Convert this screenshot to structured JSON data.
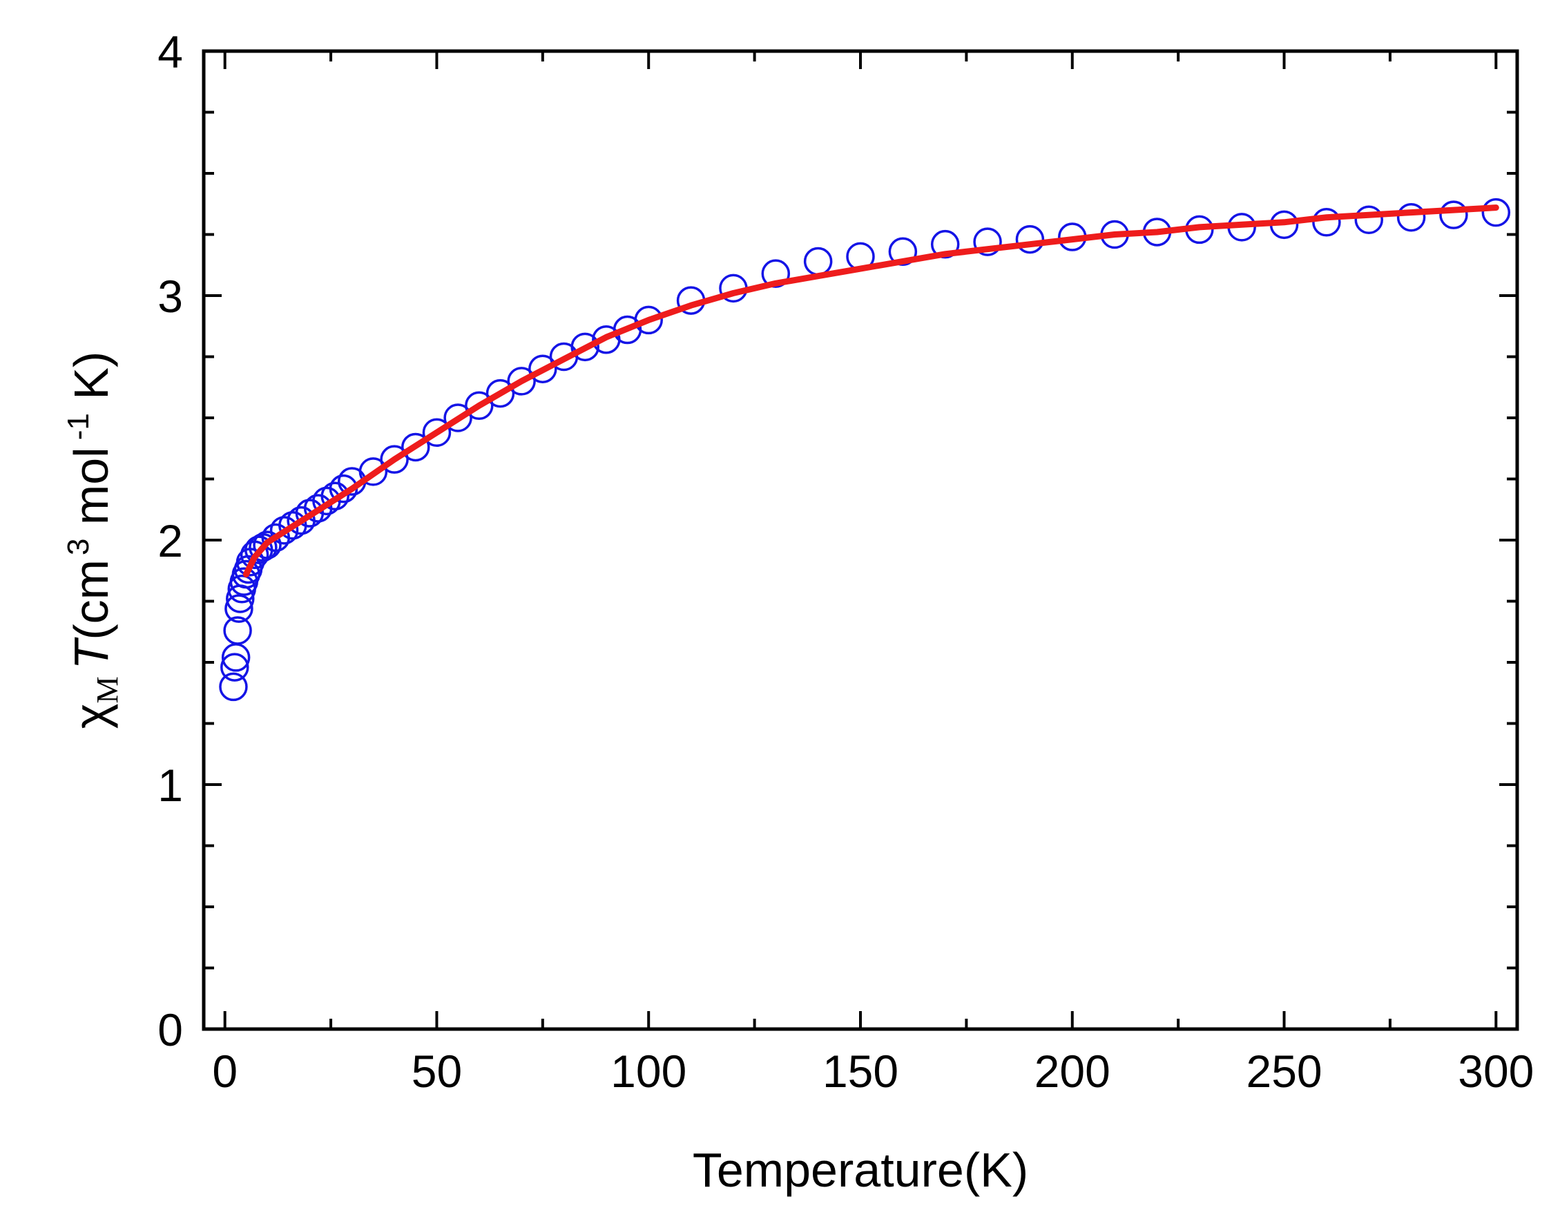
{
  "chart_data": {
    "type": "scatter",
    "title": "",
    "xlabel": "Temperature(K)",
    "ylabel": {
      "chi": "χ",
      "sub": "M",
      "T": "T",
      "open": "(cm",
      "sup3": "3",
      "mol": " mol",
      "sup_minus1": "-1",
      "close": " K)"
    },
    "xlim": [
      -5,
      305
    ],
    "ylim": [
      0,
      4
    ],
    "xticks": [
      0,
      50,
      100,
      150,
      200,
      250,
      300
    ],
    "xtick_labels": [
      "0",
      "50",
      "100",
      "150",
      "200",
      "250",
      "300"
    ],
    "yticks": [
      0,
      1,
      2,
      3,
      4
    ],
    "ytick_labels": [
      "0",
      "1",
      "2",
      "3",
      "4"
    ],
    "x_minor_step": 25,
    "y_minor_step": 0.25,
    "grid": false,
    "legend": "none",
    "series": [
      {
        "style": "open-circle",
        "color": "#1414e6",
        "points": [
          [
            2,
            1.4
          ],
          [
            2.3,
            1.48
          ],
          [
            2.6,
            1.52
          ],
          [
            3,
            1.63
          ],
          [
            3.3,
            1.72
          ],
          [
            3.6,
            1.76
          ],
          [
            4,
            1.8
          ],
          [
            4.5,
            1.83
          ],
          [
            5,
            1.86
          ],
          [
            5.5,
            1.88
          ],
          [
            6,
            1.91
          ],
          [
            7,
            1.94
          ],
          [
            8,
            1.96
          ],
          [
            9,
            1.97
          ],
          [
            10,
            1.98
          ],
          [
            12,
            2.01
          ],
          [
            14,
            2.04
          ],
          [
            16,
            2.06
          ],
          [
            18,
            2.08
          ],
          [
            20,
            2.11
          ],
          [
            22,
            2.13
          ],
          [
            24,
            2.16
          ],
          [
            26,
            2.18
          ],
          [
            28,
            2.21
          ],
          [
            30,
            2.24
          ],
          [
            35,
            2.28
          ],
          [
            40,
            2.33
          ],
          [
            45,
            2.38
          ],
          [
            50,
            2.44
          ],
          [
            55,
            2.5
          ],
          [
            60,
            2.55
          ],
          [
            65,
            2.6
          ],
          [
            70,
            2.65
          ],
          [
            75,
            2.7
          ],
          [
            80,
            2.75
          ],
          [
            85,
            2.79
          ],
          [
            90,
            2.82
          ],
          [
            95,
            2.86
          ],
          [
            100,
            2.9
          ],
          [
            110,
            2.98
          ],
          [
            120,
            3.03
          ],
          [
            130,
            3.09
          ],
          [
            140,
            3.14
          ],
          [
            150,
            3.16
          ],
          [
            160,
            3.18
          ],
          [
            170,
            3.21
          ],
          [
            180,
            3.22
          ],
          [
            190,
            3.23
          ],
          [
            200,
            3.24
          ],
          [
            210,
            3.25
          ],
          [
            220,
            3.26
          ],
          [
            230,
            3.27
          ],
          [
            240,
            3.28
          ],
          [
            250,
            3.29
          ],
          [
            260,
            3.3
          ],
          [
            270,
            3.31
          ],
          [
            280,
            3.32
          ],
          [
            290,
            3.33
          ],
          [
            300,
            3.34
          ]
        ]
      },
      {
        "style": "line",
        "color": "#ee1c1c",
        "points": [
          [
            5,
            1.86
          ],
          [
            7,
            1.93
          ],
          [
            10,
            1.99
          ],
          [
            20,
            2.1
          ],
          [
            30,
            2.21
          ],
          [
            40,
            2.33
          ],
          [
            50,
            2.44
          ],
          [
            60,
            2.55
          ],
          [
            70,
            2.65
          ],
          [
            80,
            2.74
          ],
          [
            90,
            2.83
          ],
          [
            100,
            2.9
          ],
          [
            110,
            2.96
          ],
          [
            120,
            3.01
          ],
          [
            130,
            3.05
          ],
          [
            140,
            3.08
          ],
          [
            150,
            3.11
          ],
          [
            160,
            3.14
          ],
          [
            170,
            3.17
          ],
          [
            180,
            3.19
          ],
          [
            190,
            3.21
          ],
          [
            200,
            3.23
          ],
          [
            210,
            3.25
          ],
          [
            220,
            3.26
          ],
          [
            230,
            3.28
          ],
          [
            240,
            3.29
          ],
          [
            250,
            3.3
          ],
          [
            260,
            3.32
          ],
          [
            270,
            3.33
          ],
          [
            280,
            3.34
          ],
          [
            290,
            3.35
          ],
          [
            300,
            3.36
          ]
        ]
      }
    ]
  }
}
